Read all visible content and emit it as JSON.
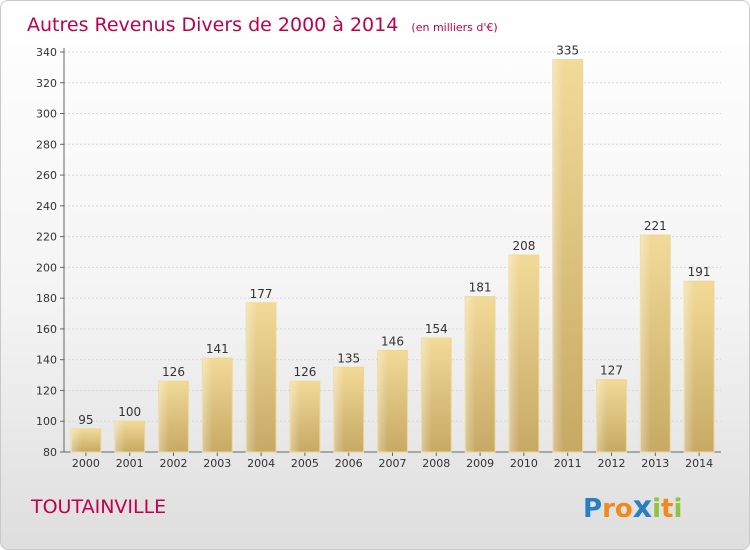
{
  "chart_data": {
    "type": "bar",
    "title": "Autres Revenus Divers de 2000 à 2014",
    "subtitle": "(en milliers d'€)",
    "categories": [
      "2000",
      "2001",
      "2002",
      "2003",
      "2004",
      "2005",
      "2006",
      "2007",
      "2008",
      "2009",
      "2010",
      "2011",
      "2012",
      "2013",
      "2014"
    ],
    "values": [
      95,
      100,
      126,
      141,
      177,
      126,
      135,
      146,
      154,
      181,
      208,
      335,
      127,
      221,
      191
    ],
    "ylim": [
      80,
      340
    ],
    "yticks": [
      80,
      100,
      120,
      140,
      160,
      180,
      200,
      220,
      240,
      260,
      280,
      300,
      320,
      340
    ],
    "grid": true,
    "bar_color": "#e8cf8a"
  },
  "footer": {
    "place": "TOUTAINVILLE",
    "brand_letters": [
      {
        "ch": "P",
        "color": "#2a7fc0"
      },
      {
        "ch": "r",
        "color": "#f08a1a"
      },
      {
        "ch": "o",
        "color": "#f08a1a"
      },
      {
        "ch": "x",
        "color": "#2a7fc0"
      },
      {
        "ch": "i",
        "color": "#8cc63f"
      },
      {
        "ch": "t",
        "color": "#f08a1a"
      },
      {
        "ch": "i",
        "color": "#8cc63f"
      }
    ]
  }
}
